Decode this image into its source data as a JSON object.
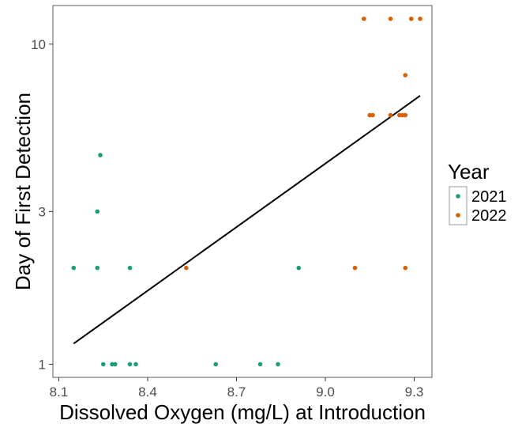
{
  "chart_data": {
    "type": "scatter",
    "xlabel": "Dissolved Oxygen (mg/L) at Introduction",
    "ylabel": "Day of First Detection",
    "xlim": [
      8.08,
      9.36
    ],
    "ylim": [
      0.91,
      13.2
    ],
    "y_scale": "log",
    "x_ticks": [
      8.1,
      8.4,
      8.7,
      9.0,
      9.3
    ],
    "x_tick_labels": [
      "8.1",
      "8.4",
      "8.7",
      "9.0",
      "9.3"
    ],
    "y_ticks": [
      1,
      3,
      10
    ],
    "y_tick_labels": [
      "1",
      "3",
      "10"
    ],
    "grid": false,
    "legend": {
      "title": "Year",
      "position": "right"
    },
    "series": [
      {
        "name": "2021",
        "color": "#1b9e77",
        "points": [
          {
            "x": 8.15,
            "y": 2
          },
          {
            "x": 8.23,
            "y": 2
          },
          {
            "x": 8.23,
            "y": 3
          },
          {
            "x": 8.24,
            "y": 4.5
          },
          {
            "x": 8.25,
            "y": 1
          },
          {
            "x": 8.28,
            "y": 1
          },
          {
            "x": 8.29,
            "y": 1
          },
          {
            "x": 8.34,
            "y": 2
          },
          {
            "x": 8.34,
            "y": 1
          },
          {
            "x": 8.36,
            "y": 1
          },
          {
            "x": 8.63,
            "y": 1
          },
          {
            "x": 8.78,
            "y": 1
          },
          {
            "x": 8.84,
            "y": 1
          },
          {
            "x": 8.91,
            "y": 2
          }
        ]
      },
      {
        "name": "2022",
        "color": "#d95f02",
        "points": [
          {
            "x": 8.53,
            "y": 2
          },
          {
            "x": 9.1,
            "y": 2
          },
          {
            "x": 9.13,
            "y": 12
          },
          {
            "x": 9.15,
            "y": 6
          },
          {
            "x": 9.16,
            "y": 6
          },
          {
            "x": 9.22,
            "y": 12
          },
          {
            "x": 9.22,
            "y": 6
          },
          {
            "x": 9.25,
            "y": 6
          },
          {
            "x": 9.26,
            "y": 6
          },
          {
            "x": 9.27,
            "y": 6
          },
          {
            "x": 9.27,
            "y": 8
          },
          {
            "x": 9.27,
            "y": 2
          },
          {
            "x": 9.29,
            "y": 12
          },
          {
            "x": 9.32,
            "y": 12
          }
        ]
      }
    ],
    "trend_line": {
      "x": [
        8.15,
        9.32
      ],
      "y": [
        1.16,
        6.9
      ],
      "color": "#000000"
    }
  }
}
